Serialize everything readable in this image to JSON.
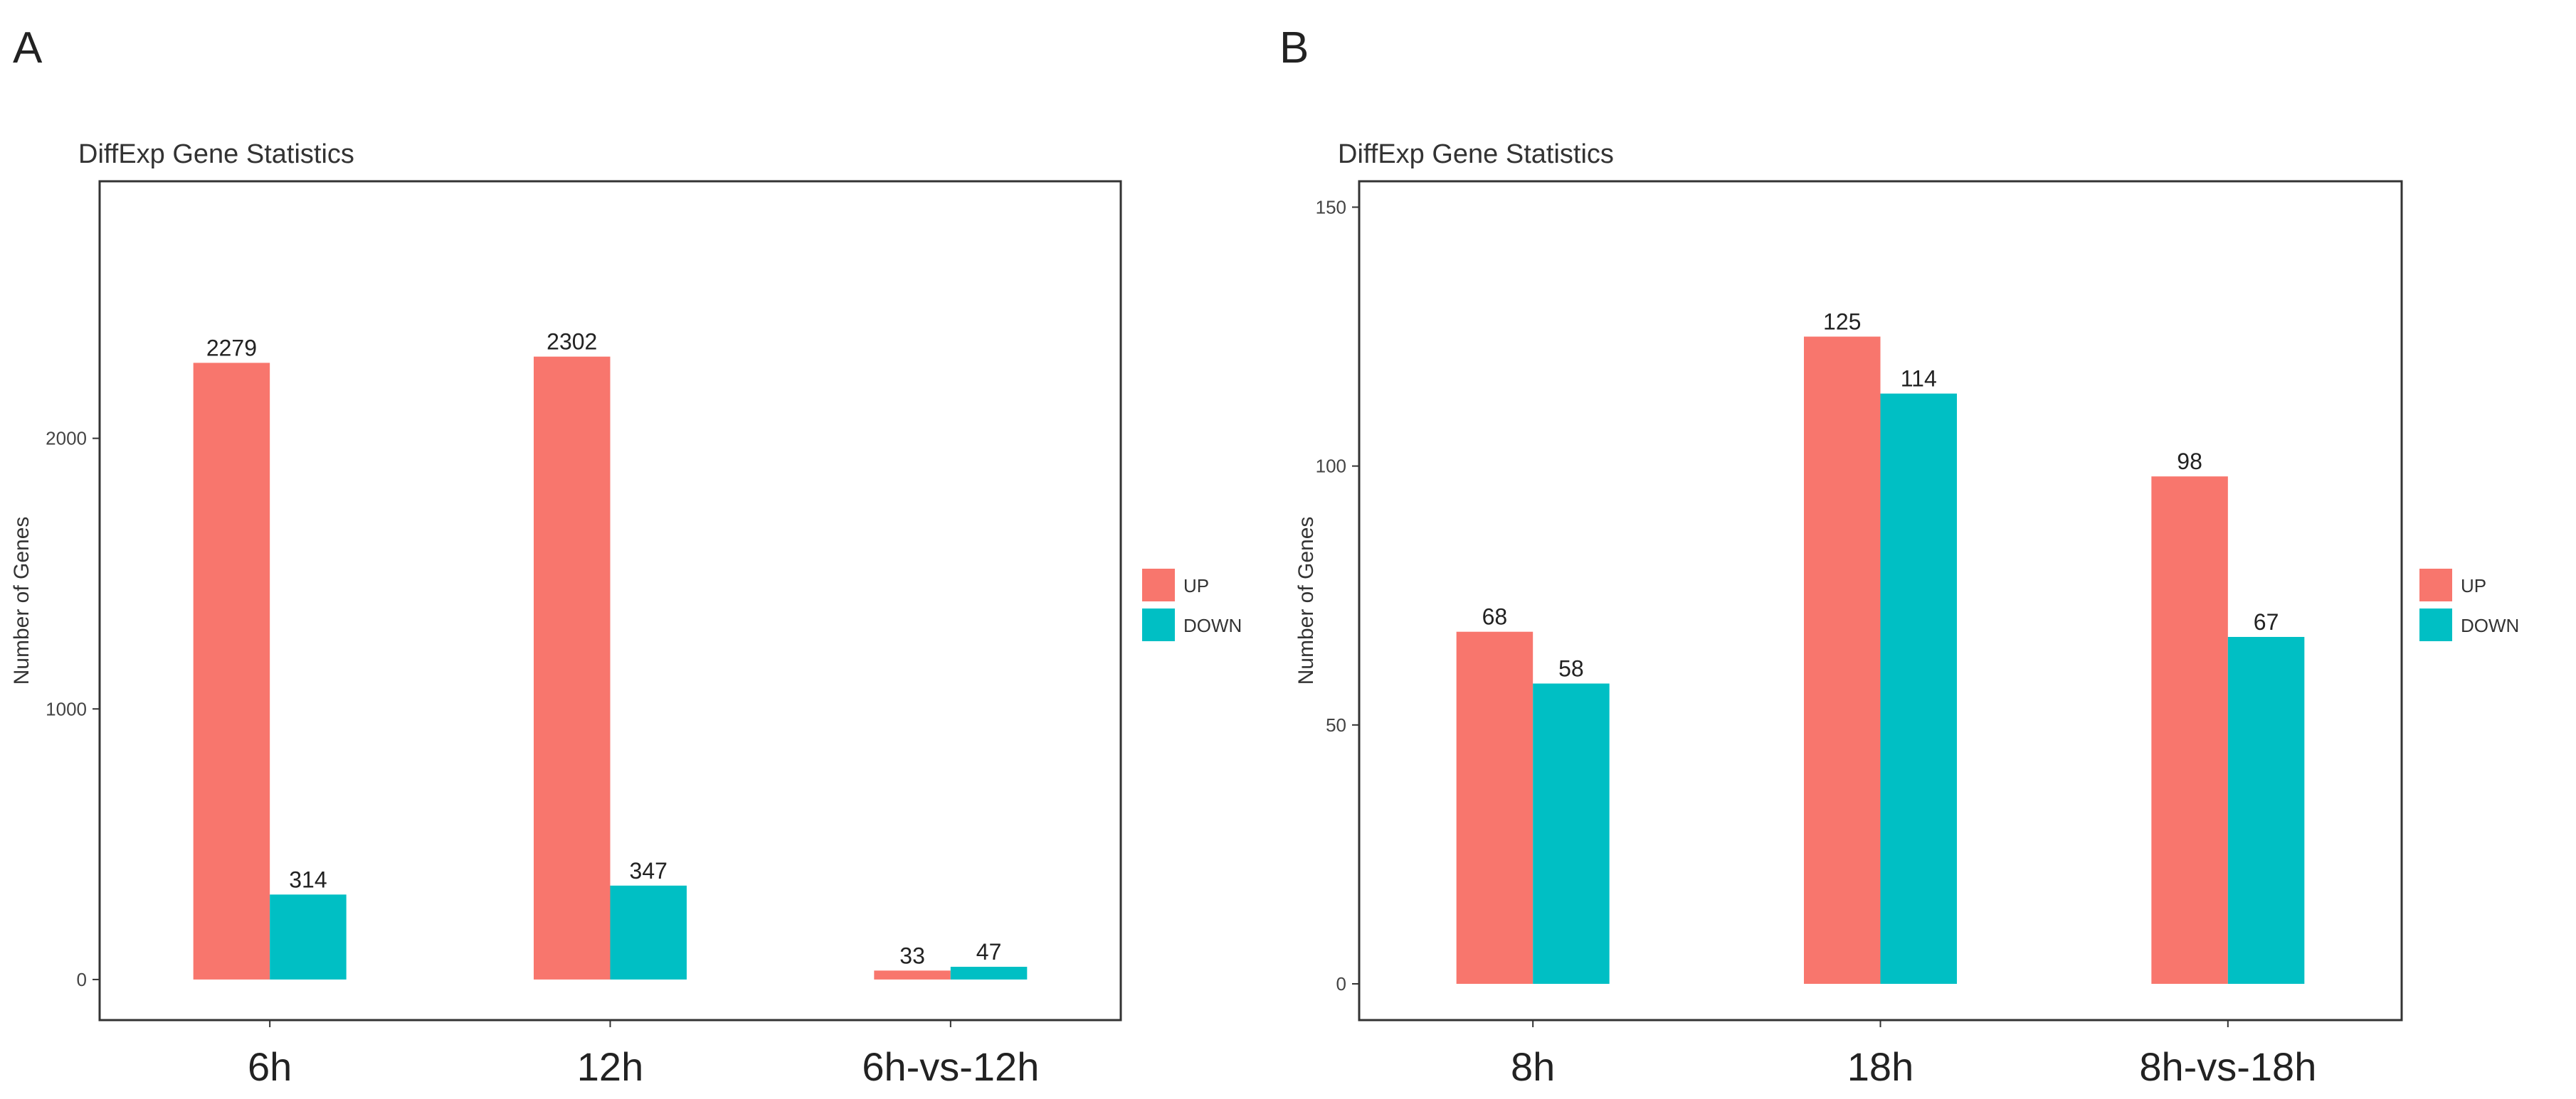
{
  "colors": {
    "up": "#F8766D",
    "down": "#00BFC4",
    "frame": "#333333"
  },
  "chart_data": [
    {
      "panel": "A",
      "type": "bar",
      "title": "DiffExp Gene Statistics",
      "xlabel": "",
      "ylabel": "Number of Genes",
      "categories": [
        "6h",
        "12h",
        "6h-vs-12h"
      ],
      "series": [
        {
          "name": "UP",
          "values": [
            2279,
            2302,
            33
          ]
        },
        {
          "name": "DOWN",
          "values": [
            314,
            347,
            47
          ]
        }
      ],
      "ylim": [
        -150,
        2950
      ],
      "yticks": [
        0,
        1000,
        2000
      ],
      "legend": "right",
      "grid": false
    },
    {
      "panel": "B",
      "type": "bar",
      "title": "DiffExp Gene Statistics",
      "xlabel": "",
      "ylabel": "Number of Genes",
      "categories": [
        "8h",
        "18h",
        "8h-vs-18h"
      ],
      "series": [
        {
          "name": "UP",
          "values": [
            68,
            125,
            98
          ]
        },
        {
          "name": "DOWN",
          "values": [
            58,
            114,
            67
          ]
        }
      ],
      "ylim": [
        -7,
        155
      ],
      "yticks": [
        0,
        50,
        100,
        150
      ],
      "legend": "right",
      "grid": false
    }
  ]
}
